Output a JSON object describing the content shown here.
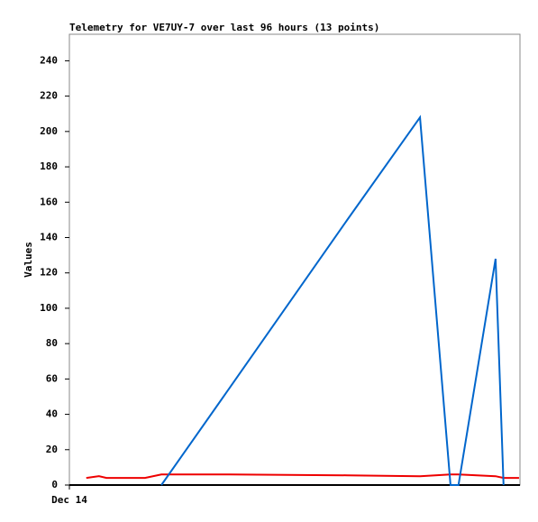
{
  "chart_data": {
    "type": "line",
    "title": "Telemetry for VE7UY-7 over last 96 hours (13 points)",
    "y_label": "Values",
    "x": [
      3.6,
      6.3,
      7.9,
      16.1,
      19.6,
      32.3,
      59.2,
      74.7,
      81.2,
      82.9,
      90.8,
      92.5,
      95.8
    ],
    "xlim": [
      0,
      96
    ],
    "xticks": [
      {
        "value": 0,
        "label": "Dec 14"
      }
    ],
    "ylim": [
      0,
      255
    ],
    "yticks": [
      0,
      20,
      40,
      60,
      80,
      100,
      120,
      140,
      160,
      180,
      200,
      220,
      240
    ],
    "series": [
      {
        "color": "#ee0000",
        "values": [
          4,
          5,
          4,
          4,
          6,
          6,
          5.5,
          5,
          6,
          6,
          5,
          4,
          4
        ]
      },
      {
        "color": "#0066cc",
        "values": [
          null,
          null,
          null,
          null,
          0,
          48,
          150,
          208,
          0,
          0,
          128,
          0,
          null
        ]
      }
    ]
  }
}
